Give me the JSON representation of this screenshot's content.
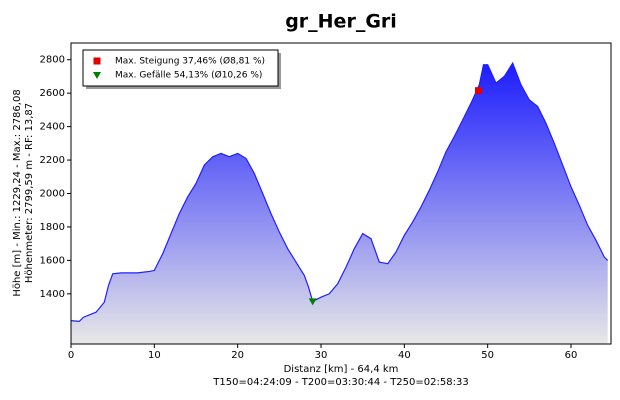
{
  "chart_data": {
    "type": "area",
    "title": "gr_Her_Gri",
    "xlabel": [
      "Distanz [km] - 64,4 km",
      "T150=04:24:09 - T200=03:30:44 - T250=02:58:33"
    ],
    "ylabel": [
      "Höhe [m] - Min.: 1229,24 - Max.: 2786,08",
      "Höhenmeter: 2799,59 m - RF: 13,87"
    ],
    "x": [
      0,
      1,
      1.5,
      3,
      4,
      4.5,
      5,
      6,
      8,
      9.5,
      10,
      11,
      12,
      13,
      14,
      15,
      16,
      17,
      18,
      19,
      20,
      21,
      22,
      23,
      24,
      25,
      26,
      27,
      28,
      28.5,
      29,
      30,
      31,
      32,
      33,
      34,
      35,
      36,
      37,
      38,
      39,
      40,
      41,
      42,
      43,
      44,
      45,
      46,
      47,
      48,
      49,
      49.5,
      50,
      51,
      52,
      53,
      54,
      55,
      56,
      57,
      58,
      59,
      60,
      61,
      62,
      63,
      64,
      64.4
    ],
    "values": [
      1240,
      1235,
      1260,
      1290,
      1350,
      1450,
      1520,
      1525,
      1525,
      1535,
      1540,
      1640,
      1760,
      1880,
      1980,
      2060,
      2170,
      2220,
      2240,
      2220,
      2240,
      2210,
      2120,
      2000,
      1880,
      1770,
      1670,
      1590,
      1510,
      1440,
      1355,
      1380,
      1400,
      1460,
      1560,
      1670,
      1760,
      1730,
      1590,
      1580,
      1650,
      1750,
      1830,
      1920,
      2020,
      2130,
      2250,
      2340,
      2440,
      2540,
      2650,
      2770,
      2770,
      2660,
      2700,
      2780,
      2650,
      2560,
      2520,
      2420,
      2300,
      2170,
      2040,
      1930,
      1810,
      1720,
      1620,
      1600
    ],
    "color": "#2020ff",
    "markers": [
      {
        "label": "Max. Steigung 37,46% (Ø8,81 %)",
        "x": 48.9,
        "y": 2615,
        "color": "#e00000",
        "shape": "square"
      },
      {
        "label": "Max. Gefälle 54,13% (Ø10,26 %)",
        "x": 29,
        "y": 1355,
        "color": "#008000",
        "shape": "triangle"
      }
    ],
    "xlim": [
      0,
      64.8
    ],
    "ylim": [
      1100,
      2900
    ],
    "xticks": [
      0,
      10,
      20,
      30,
      40,
      50,
      60
    ],
    "yticks": [
      1400,
      1600,
      1800,
      2000,
      2200,
      2400,
      2600,
      2800
    ],
    "legend": "top-left"
  }
}
